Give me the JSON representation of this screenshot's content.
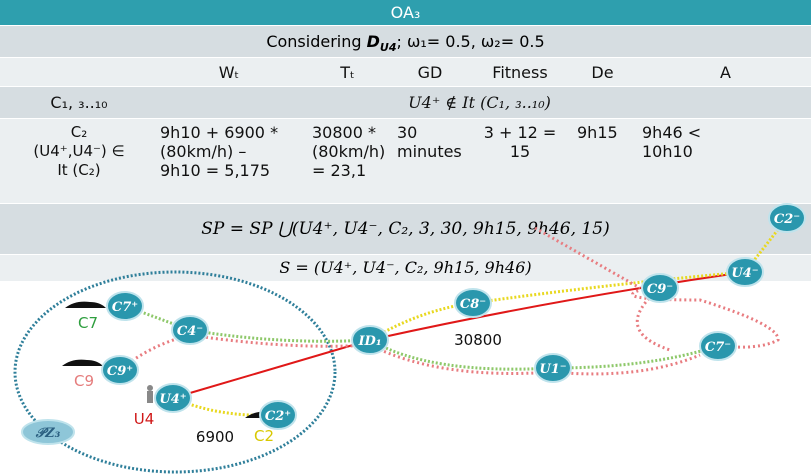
{
  "header": {
    "title": "OA₃"
  },
  "considering": {
    "prefix": "Considering ",
    "symbol": "D",
    "subscript": "U4",
    "suffix": "; ω₁= 0.5, ω₂= 0.5"
  },
  "table": {
    "columns": [
      "Wₜ",
      "Tₜ",
      "GD",
      "Fitness",
      "De",
      "A"
    ],
    "excluded": {
      "label": "C₁, ₃..₁₀",
      "note": "U4⁺ ∉ It (C₁, ₃..₁₀)"
    },
    "candidate": {
      "label": [
        "C₂",
        "(U4⁺,U4⁻) ∈",
        "It (C₂)"
      ],
      "cells": [
        [
          "9h10 + 6900 *",
          "(80km/h) –",
          "9h10 = 5,175"
        ],
        [
          "30800 *",
          "(80km/h)",
          "= 23,1"
        ],
        [
          "30",
          "minutes"
        ],
        [
          "3 + 12 =",
          "15"
        ],
        [
          "9h15"
        ],
        [
          "9h46 <",
          "10h10"
        ]
      ]
    }
  },
  "sp": "SP = SP ⋃(U4⁺, U4⁻, C₂, 3, 30, 9h15, 9h46, 15)",
  "s": "S = (U4⁺, U4⁻, C₂, 9h15, 9h46)",
  "nodes": [
    {
      "label": "C7⁺"
    },
    {
      "label": "C4⁻"
    },
    {
      "label": "C9⁺"
    },
    {
      "label": "U4⁺"
    },
    {
      "label": "C2⁺"
    },
    {
      "label": "ID₁"
    },
    {
      "label": "C8⁻"
    },
    {
      "label": "U1⁻"
    },
    {
      "label": "C7⁻"
    },
    {
      "label": "U4⁻"
    },
    {
      "label": "C2⁻"
    },
    {
      "label": "C9⁻"
    },
    {
      "label": "𝒫Z₃"
    }
  ],
  "labels": [
    {
      "text": "C7",
      "color": "#2e9e3e"
    },
    {
      "text": "C9",
      "color": "#e57c7c"
    },
    {
      "text": "U4",
      "color": "#d01818"
    },
    {
      "text": "6900",
      "color": "#111111"
    },
    {
      "text": "C2",
      "color": "#d8c800"
    },
    {
      "text": "30800",
      "color": "#111111"
    }
  ]
}
